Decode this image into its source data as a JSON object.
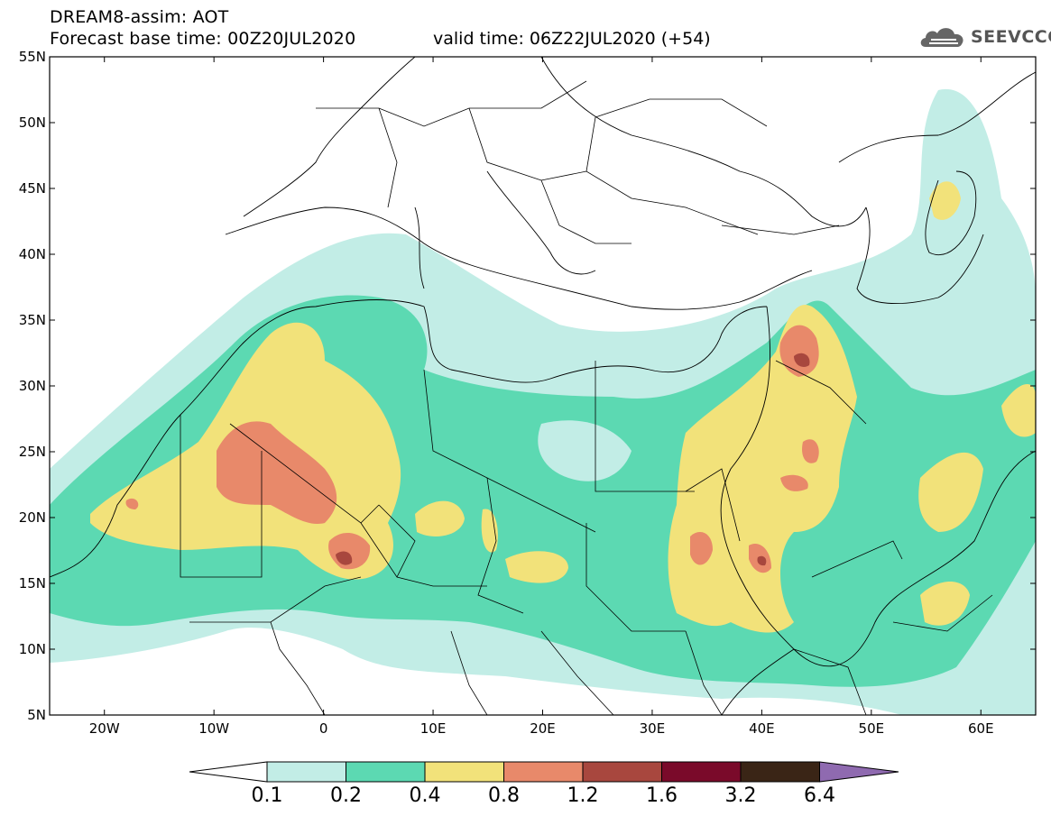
{
  "header": {
    "title": "DREAM8-assim: AOT",
    "base_time": "Forecast base time: 00Z20JUL2020",
    "valid_time": "valid time: 06Z22JUL2020 (+54)"
  },
  "logo": {
    "text": "SEEVCCC",
    "icon": "cloud-icon"
  },
  "map": {
    "lat_labels": [
      "55N",
      "50N",
      "45N",
      "40N",
      "35N",
      "30N",
      "25N",
      "20N",
      "15N",
      "10N",
      "5N"
    ],
    "lon_labels": [
      "20W",
      "10W",
      "0",
      "10E",
      "20E",
      "30E",
      "40E",
      "50E",
      "60E"
    ],
    "colors": {
      "c1": "#c2ede6",
      "c2": "#5cd9b2",
      "c3": "#f2e27a",
      "c4": "#e8896a",
      "c5": "#a8473e",
      "c6": "#7a0a2a",
      "c7": "#3a2516",
      "c8": "#8f6ab0"
    }
  },
  "colorbar": {
    "labels": [
      "0.1",
      "0.2",
      "0.4",
      "0.8",
      "1.2",
      "1.6",
      "3.2",
      "6.4"
    ]
  }
}
